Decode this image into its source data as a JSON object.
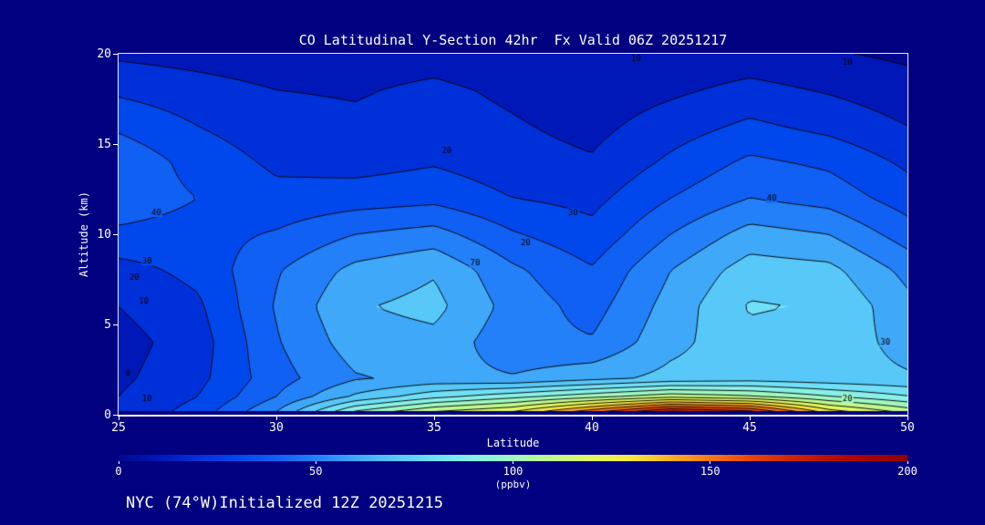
{
  "footer": "NYC (74°W)Initialized 12Z 20251215",
  "colors": {
    "background": "#000080",
    "axis_text": "#ffffff",
    "frame": "#ffffff",
    "contour_line": "#000000"
  },
  "chart_data": {
    "type": "heatmap",
    "title": "CO Latitudinal Y-Section 42hr  Fx Valid 06Z 20251217",
    "xlabel": "Latitude",
    "ylabel": "Altitude (km)",
    "xlim": [
      25,
      50
    ],
    "ylim": [
      0,
      20
    ],
    "xticks": [
      25,
      30,
      35,
      40,
      45,
      50
    ],
    "yticks": [
      0,
      5,
      10,
      15,
      20
    ],
    "grid": false,
    "colorbar": {
      "min": 0,
      "max": 200,
      "ticks": [
        0,
        50,
        100,
        150,
        200
      ],
      "unit": "(ppbv)",
      "orientation": "horizontal"
    },
    "color_stops": [
      [
        0,
        "#000890"
      ],
      [
        10,
        "#0018B8"
      ],
      [
        20,
        "#0030D8"
      ],
      [
        30,
        "#0048EC"
      ],
      [
        40,
        "#1060F4"
      ],
      [
        50,
        "#2480F8"
      ],
      [
        60,
        "#40A8F8"
      ],
      [
        70,
        "#58C8F8"
      ],
      [
        80,
        "#70E0F8"
      ],
      [
        90,
        "#88F0E8"
      ],
      [
        100,
        "#A0F8C0"
      ],
      [
        110,
        "#C0F890"
      ],
      [
        120,
        "#E0F860"
      ],
      [
        130,
        "#F8E840"
      ],
      [
        140,
        "#F8B028"
      ],
      [
        150,
        "#F87818"
      ],
      [
        160,
        "#E84808"
      ],
      [
        170,
        "#D02800"
      ],
      [
        180,
        "#B81000"
      ],
      [
        190,
        "#A80000"
      ],
      [
        200,
        "#900000"
      ]
    ],
    "x_lats": [
      25,
      27.5,
      30,
      32.5,
      35,
      37.5,
      40,
      42.5,
      45,
      47.5,
      50
    ],
    "y_alts_km": [
      0,
      1,
      2,
      4,
      6,
      8,
      10,
      12,
      14,
      16,
      18,
      20
    ],
    "co_ppbv_by_alt_desc": [
      [
        18,
        16,
        14,
        15,
        16,
        13,
        10,
        12,
        14,
        11,
        8
      ],
      [
        28,
        24,
        20,
        19,
        22,
        18,
        14,
        18,
        23,
        19,
        14
      ],
      [
        38,
        30,
        24,
        22,
        25,
        21,
        17,
        25,
        32,
        27,
        20
      ],
      [
        48,
        36,
        28,
        26,
        29,
        24,
        21,
        32,
        42,
        38,
        28
      ],
      [
        46,
        40,
        33,
        35,
        37,
        30,
        27,
        40,
        50,
        46,
        35
      ],
      [
        38,
        36,
        41,
        50,
        54,
        41,
        33,
        50,
        64,
        60,
        45
      ],
      [
        26,
        33,
        49,
        63,
        69,
        52,
        41,
        60,
        75,
        73,
        57
      ],
      [
        20,
        28,
        51,
        69,
        73,
        56,
        46,
        64,
        81,
        79,
        63
      ],
      [
        16,
        25,
        49,
        65,
        67,
        53,
        51,
        67,
        77,
        75,
        67
      ],
      [
        18,
        27,
        46,
        59,
        63,
        61,
        67,
        73,
        75,
        73,
        71
      ],
      [
        20,
        30,
        50,
        72,
        87,
        97,
        107,
        117,
        112,
        101,
        91
      ],
      [
        22,
        35,
        62,
        107,
        127,
        137,
        167,
        196,
        186,
        142,
        122
      ]
    ],
    "contour_levels": [
      10,
      20,
      30,
      40,
      50,
      60,
      70,
      80,
      90,
      100,
      110,
      120,
      130,
      140,
      150,
      160,
      170,
      180,
      190
    ],
    "contour_labels": [
      {
        "level": 40,
        "lat": 26.2,
        "alt": 11.2
      },
      {
        "level": 30,
        "lat": 25.9,
        "alt": 8.5
      },
      {
        "level": 20,
        "lat": 25.5,
        "alt": 7.6
      },
      {
        "level": 10,
        "lat": 25.8,
        "alt": 6.3
      },
      {
        "level": 0,
        "lat": 25.3,
        "alt": 2.3
      },
      {
        "level": 10,
        "lat": 25.9,
        "alt": 0.9
      },
      {
        "level": 20,
        "lat": 35.4,
        "alt": 14.6
      },
      {
        "level": 10,
        "lat": 41.4,
        "alt": 19.7
      },
      {
        "level": 10,
        "lat": 48.1,
        "alt": 19.5
      },
      {
        "level": 70,
        "lat": 36.3,
        "alt": 8.4
      },
      {
        "level": 20,
        "lat": 37.9,
        "alt": 9.5
      },
      {
        "level": 30,
        "lat": 39.4,
        "alt": 11.2
      },
      {
        "level": 40,
        "lat": 45.7,
        "alt": 12.0
      },
      {
        "level": 30,
        "lat": 49.3,
        "alt": 4.0
      },
      {
        "level": 20,
        "lat": 48.1,
        "alt": 0.9
      }
    ]
  }
}
